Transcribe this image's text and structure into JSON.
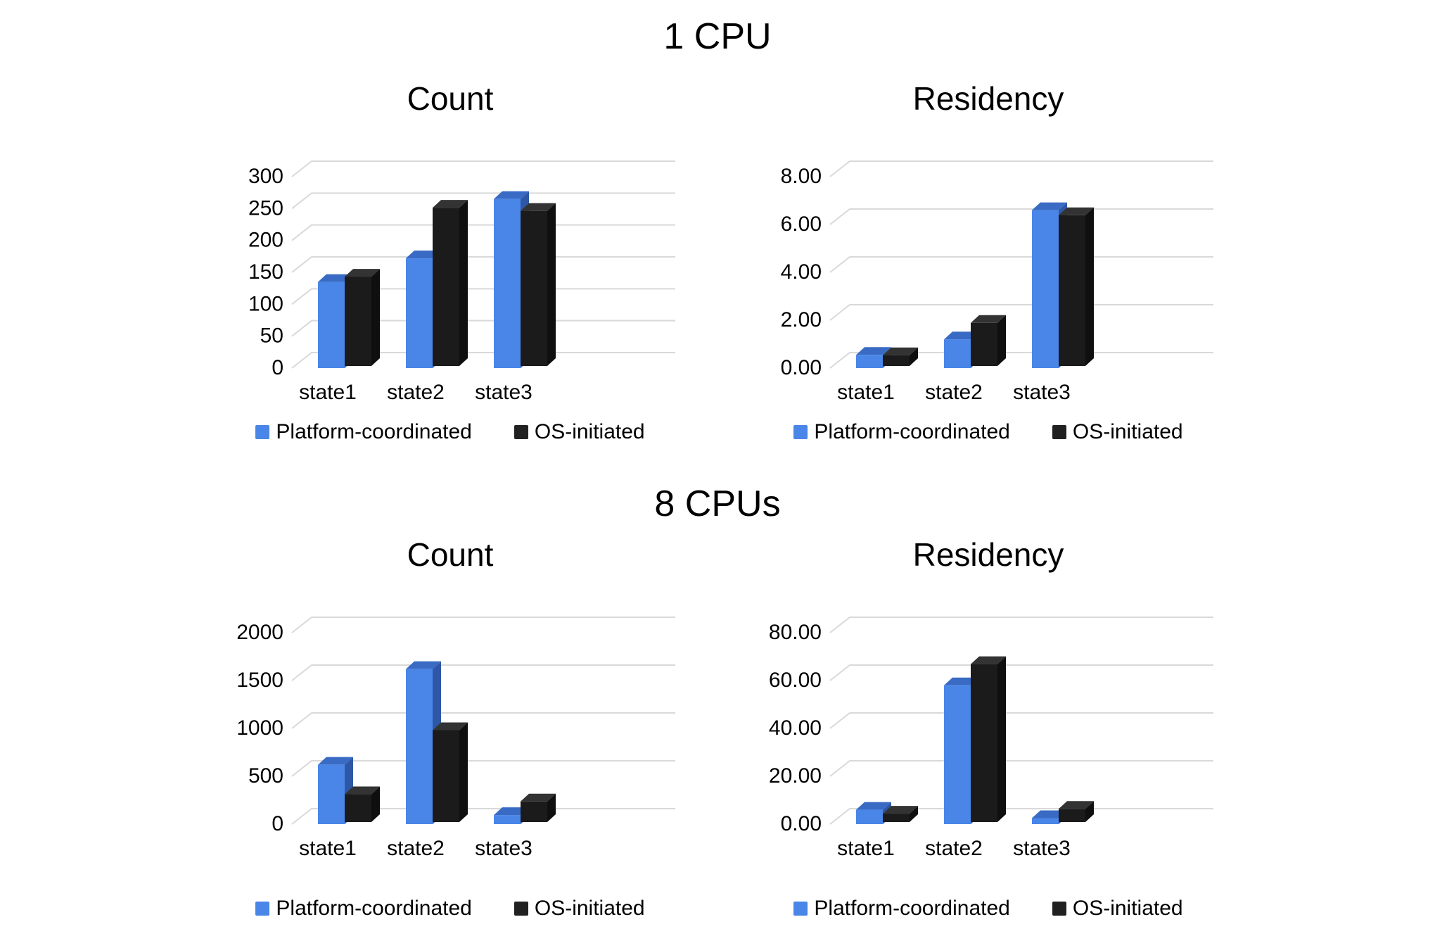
{
  "page": {
    "background": "#ffffff",
    "text_color": "#000000",
    "grid_color": "#d9d9d9",
    "series_colors": {
      "platform": {
        "front": "#4a86e8",
        "top": "#3a6bc4",
        "side": "#2e58a6",
        "legend": "#4a86e8"
      },
      "os": {
        "front": "#1b1b1b",
        "top": "#333333",
        "side": "#0f0f0f",
        "legend": "#212121"
      }
    },
    "sections": [
      {
        "title": "1 CPU"
      },
      {
        "title": "8 CPUs"
      }
    ]
  },
  "chart_data": [
    {
      "type": "bar",
      "style": "3d-column",
      "section": "1 CPU",
      "title": "Count",
      "categories": [
        "state1",
        "state2",
        "state3"
      ],
      "series": [
        {
          "name": "Platform-coordinated",
          "color_key": "platform",
          "values": [
            135,
            172,
            265
          ]
        },
        {
          "name": "OS-initiated",
          "color_key": "os",
          "values": [
            140,
            248,
            243
          ]
        }
      ],
      "ylim": [
        0,
        300
      ],
      "yticks": [
        "0",
        "50",
        "100",
        "150",
        "200",
        "250",
        "300"
      ],
      "grid": true,
      "legend_position": "bottom"
    },
    {
      "type": "bar",
      "style": "3d-column",
      "section": "1 CPU",
      "title": "Residency",
      "categories": [
        "state1",
        "state2",
        "state3"
      ],
      "series": [
        {
          "name": "Platform-coordinated",
          "color_key": "platform",
          "values": [
            0.55,
            1.2,
            6.6
          ]
        },
        {
          "name": "OS-initiated",
          "color_key": "os",
          "values": [
            0.45,
            1.8,
            6.3
          ]
        }
      ],
      "ylim": [
        0,
        8
      ],
      "yticks": [
        "0.00",
        "2.00",
        "4.00",
        "6.00",
        "8.00"
      ],
      "grid": true,
      "legend_position": "bottom"
    },
    {
      "type": "bar",
      "style": "3d-column",
      "section": "8 CPUs",
      "title": "Count",
      "categories": [
        "state1",
        "state2",
        "state3"
      ],
      "series": [
        {
          "name": "Platform-coordinated",
          "color_key": "platform",
          "values": [
            620,
            1620,
            95
          ]
        },
        {
          "name": "OS-initiated",
          "color_key": "os",
          "values": [
            290,
            960,
            215
          ]
        }
      ],
      "ylim": [
        0,
        2000
      ],
      "yticks": [
        "0",
        "500",
        "1000",
        "1500",
        "2000"
      ],
      "grid": true,
      "legend_position": "bottom"
    },
    {
      "type": "bar",
      "style": "3d-column",
      "section": "8 CPUs",
      "title": "Residency",
      "categories": [
        "state1",
        "state2",
        "state3"
      ],
      "series": [
        {
          "name": "Platform-coordinated",
          "color_key": "platform",
          "values": [
            6,
            58,
            2.5
          ]
        },
        {
          "name": "OS-initiated",
          "color_key": "os",
          "values": [
            3.5,
            66,
            5.5
          ]
        }
      ],
      "ylim": [
        0,
        80
      ],
      "yticks": [
        "0.00",
        "20.00",
        "40.00",
        "60.00",
        "80.00"
      ],
      "grid": true,
      "legend_position": "bottom"
    }
  ]
}
